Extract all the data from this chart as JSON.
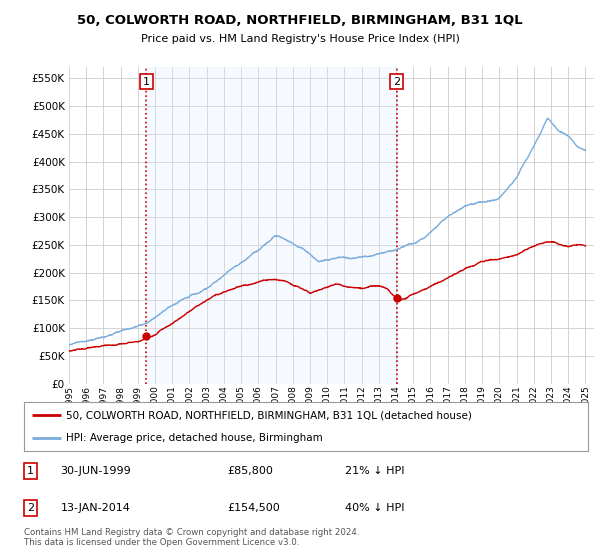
{
  "title": "50, COLWORTH ROAD, NORTHFIELD, BIRMINGHAM, B31 1QL",
  "subtitle": "Price paid vs. HM Land Registry's House Price Index (HPI)",
  "ylim": [
    0,
    570000
  ],
  "yticks": [
    0,
    50000,
    100000,
    150000,
    200000,
    250000,
    300000,
    350000,
    400000,
    450000,
    500000,
    550000
  ],
  "background_color": "#ffffff",
  "grid_color": "#cccccc",
  "hpi_color": "#7aacdc",
  "price_color": "#cc0000",
  "vline_color": "#cc0000",
  "shade_color": "#ddeeff",
  "sale1_x": 1999.5,
  "sale1_price": 85800,
  "sale2_x": 2014.04,
  "sale2_price": 154500,
  "legend_price_label": "50, COLWORTH ROAD, NORTHFIELD, BIRMINGHAM, B31 1QL (detached house)",
  "legend_hpi_label": "HPI: Average price, detached house, Birmingham",
  "footnote": "Contains HM Land Registry data © Crown copyright and database right 2024.\nThis data is licensed under the Open Government Licence v3.0.",
  "table_rows": [
    {
      "num": "1",
      "date": "30-JUN-1999",
      "price": "£85,800",
      "hpi": "21% ↓ HPI"
    },
    {
      "num": "2",
      "date": "13-JAN-2014",
      "price": "£154,500",
      "hpi": "40% ↓ HPI"
    }
  ]
}
